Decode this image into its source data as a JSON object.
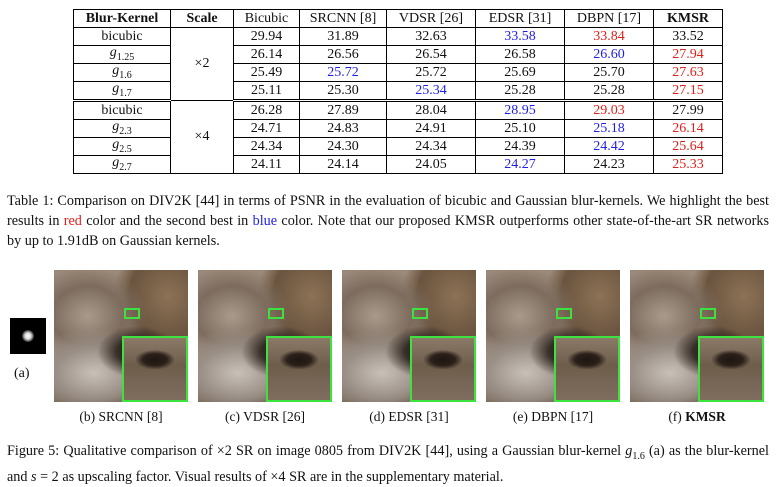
{
  "table": {
    "headers": [
      "Blur-Kernel",
      "Scale",
      "Bicubic",
      "SRCNN [8]",
      "VDSR [26]",
      "EDSR [31]",
      "DBPN [17]",
      "KMSR"
    ],
    "groups": [
      {
        "scale": "×2",
        "rows": [
          {
            "kernel": "bicubic",
            "kernel_sub": "",
            "values": [
              "29.94",
              "31.89",
              "32.63",
              "33.58",
              "33.84",
              "33.52"
            ],
            "colors": [
              "",
              "",
              "",
              "blue",
              "red",
              ""
            ]
          },
          {
            "kernel": "g",
            "kernel_sub": "1.25",
            "values": [
              "26.14",
              "26.56",
              "26.54",
              "26.58",
              "26.60",
              "27.94"
            ],
            "colors": [
              "",
              "",
              "",
              "",
              "blue",
              "red"
            ]
          },
          {
            "kernel": "g",
            "kernel_sub": "1.6",
            "values": [
              "25.49",
              "25.72",
              "25.72",
              "25.69",
              "25.70",
              "27.63"
            ],
            "colors": [
              "",
              "blue",
              "",
              "",
              "",
              "red"
            ]
          },
          {
            "kernel": "g",
            "kernel_sub": "1.7",
            "values": [
              "25.11",
              "25.30",
              "25.34",
              "25.28",
              "25.28",
              "27.15"
            ],
            "colors": [
              "",
              "",
              "blue",
              "",
              "",
              "red"
            ]
          }
        ]
      },
      {
        "scale": "×4",
        "rows": [
          {
            "kernel": "bicubic",
            "kernel_sub": "",
            "values": [
              "26.28",
              "27.89",
              "28.04",
              "28.95",
              "29.03",
              "27.99"
            ],
            "colors": [
              "",
              "",
              "",
              "blue",
              "red",
              ""
            ]
          },
          {
            "kernel": "g",
            "kernel_sub": "2.3",
            "values": [
              "24.71",
              "24.83",
              "24.91",
              "25.10",
              "25.18",
              "26.14"
            ],
            "colors": [
              "",
              "",
              "",
              "",
              "blue",
              "red"
            ]
          },
          {
            "kernel": "g",
            "kernel_sub": "2.5",
            "values": [
              "24.34",
              "24.30",
              "24.34",
              "24.39",
              "24.42",
              "25.64"
            ],
            "colors": [
              "",
              "",
              "",
              "",
              "blue",
              "red"
            ]
          },
          {
            "kernel": "g",
            "kernel_sub": "2.7",
            "values": [
              "24.11",
              "24.14",
              "24.05",
              "24.27",
              "24.23",
              "25.33"
            ],
            "colors": [
              "",
              "",
              "",
              "blue",
              "",
              "red"
            ]
          }
        ]
      }
    ]
  },
  "table_caption": {
    "part1": "Table 1: Comparison on DIV2K [44] in terms of PSNR in the evaluation of bicubic and Gaussian blur-kernels. We highlight the best results in ",
    "red_word": "red",
    "part2": " color and the second best in ",
    "blue_word": "blue",
    "part3": " color. Note that our proposed KMSR outperforms other state-of-the-art SR networks by up to 1.91dB on Gaussian kernels."
  },
  "figure": {
    "kernel_label": "(a)",
    "panels": [
      {
        "prefix": "(b) ",
        "name": "SRCNN [8]",
        "bold": false
      },
      {
        "prefix": "(c) ",
        "name": "VDSR [26]",
        "bold": false
      },
      {
        "prefix": "(d) ",
        "name": "EDSR [31]",
        "bold": false
      },
      {
        "prefix": "(e) ",
        "name": "DBPN [17]",
        "bold": false
      },
      {
        "prefix": "(f) ",
        "name": "KMSR",
        "bold": true
      }
    ],
    "caption": {
      "part1": "Figure 5: Qualitative comparison of ×2 SR on image 0805 from DIV2K [44], using a Gaussian blur-kernel ",
      "kernel_var": "g",
      "kernel_sub": "1.6",
      "part2": " (a) as the blur-kernel and ",
      "s_var": "s",
      "part3": " = 2 as upscaling factor. Visual results of ×4 SR are in the supplementary material."
    }
  },
  "colors": {
    "best": "#e0201b",
    "second": "#1f1fe6",
    "zoom_box": "#3ee23e"
  }
}
